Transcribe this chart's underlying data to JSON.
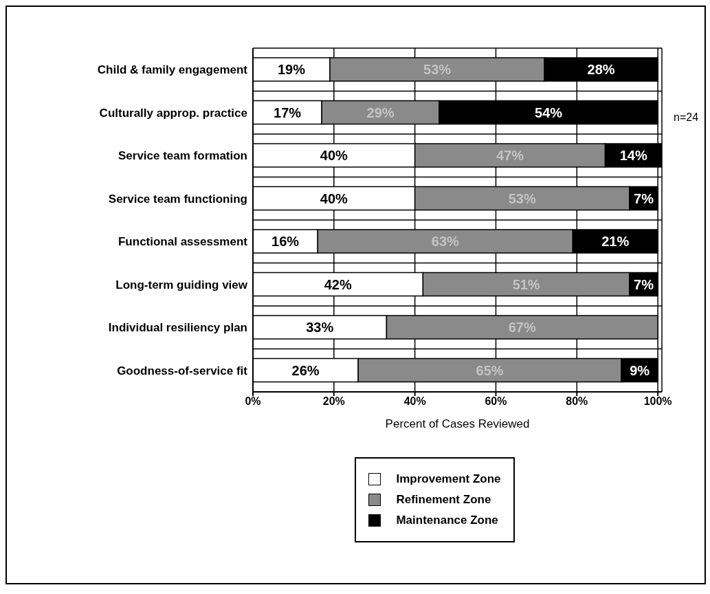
{
  "chart_data": {
    "type": "bar",
    "orientation": "horizontal",
    "stacked": true,
    "categories": [
      "Child & family engagement",
      "Culturally approp. practice",
      "Service team formation",
      "Service team functioning",
      "Functional assessment",
      "Long-term guiding view",
      "Individual resiliency plan",
      "Goodness-of-service fit"
    ],
    "series": [
      {
        "name": "Improvement Zone",
        "color": "#ffffff",
        "values": [
          19,
          17,
          40,
          40,
          16,
          42,
          33,
          26
        ],
        "value_labels": [
          "19%",
          "17%",
          "40%",
          "40%",
          "16%",
          "42%",
          "33%",
          "26%"
        ]
      },
      {
        "name": "Refinement Zone",
        "color": "#8a8a8a",
        "values": [
          53,
          29,
          47,
          53,
          63,
          51,
          67,
          65
        ],
        "value_labels": [
          "53%",
          "29%",
          "47%",
          "53%",
          "63%",
          "51%",
          "67%",
          "65%"
        ]
      },
      {
        "name": "Maintenance Zone",
        "color": "#000000",
        "values": [
          28,
          54,
          14,
          7,
          21,
          7,
          null,
          9
        ],
        "value_labels": [
          "28%",
          "54%",
          "14%",
          "7%",
          "21%",
          "7%",
          null,
          "9%"
        ]
      }
    ],
    "xlabel": "Percent of Cases Reviewed",
    "xlim": [
      0,
      101
    ],
    "xticks": [
      {
        "value": 0,
        "label": "0%"
      },
      {
        "value": 20,
        "label": "20%"
      },
      {
        "value": 40,
        "label": "40%"
      },
      {
        "value": 60,
        "label": "60%"
      },
      {
        "value": 80,
        "label": "80%"
      },
      {
        "value": 100,
        "label": "100%"
      }
    ],
    "grid": true,
    "legend": "bottom",
    "annotations": [
      "n=24"
    ]
  }
}
